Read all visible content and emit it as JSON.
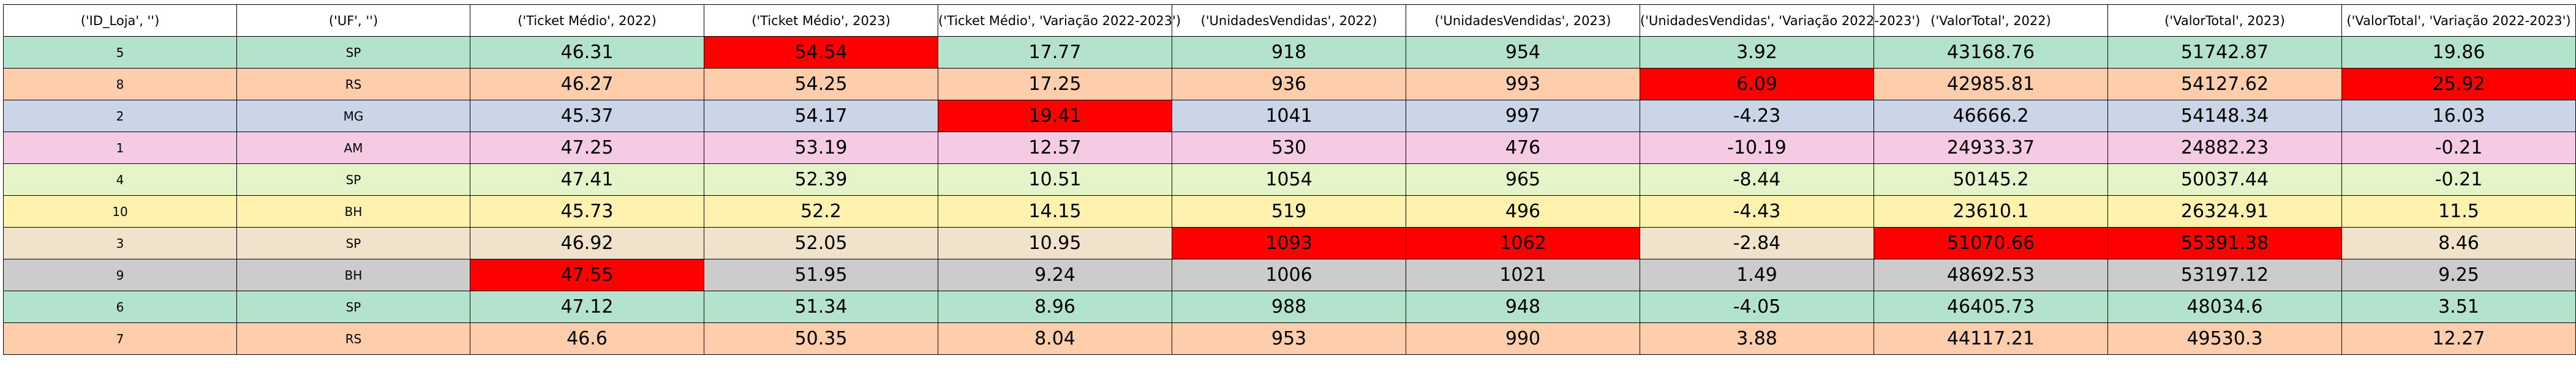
{
  "chart_data": {
    "type": "table",
    "columns": [
      "('ID_Loja', '')",
      "('UF', '')",
      "('Ticket Médio', 2022)",
      "('Ticket Médio', 2023)",
      "('Ticket Médio', 'Variação 2022-2023')",
      "('UnidadesVendidas', 2022)",
      "('UnidadesVendidas', 2023)",
      "('UnidadesVendidas', 'Variação 2022-2023')",
      "('ValorTotal', 2022)",
      "('ValorTotal', 2023)",
      "('ValorTotal', 'Variação 2022-2023')"
    ],
    "rows": [
      [
        "5",
        "SP",
        "46.31",
        "54.54",
        "17.77",
        "918",
        "954",
        "3.92",
        "43168.76",
        "51742.87",
        "19.86"
      ],
      [
        "8",
        "RS",
        "46.27",
        "54.25",
        "17.25",
        "936",
        "993",
        "6.09",
        "42985.81",
        "54127.62",
        "25.92"
      ],
      [
        "2",
        "MG",
        "45.37",
        "54.17",
        "19.41",
        "1041",
        "997",
        "-4.23",
        "46666.2",
        "54148.34",
        "16.03"
      ],
      [
        "1",
        "AM",
        "47.25",
        "53.19",
        "12.57",
        "530",
        "476",
        "-10.19",
        "24933.37",
        "24882.23",
        "-0.21"
      ],
      [
        "4",
        "SP",
        "47.41",
        "52.39",
        "10.51",
        "1054",
        "965",
        "-8.44",
        "50145.2",
        "50037.44",
        "-0.21"
      ],
      [
        "10",
        "BH",
        "45.73",
        "52.2",
        "14.15",
        "519",
        "496",
        "-4.43",
        "23610.1",
        "26324.91",
        "11.5"
      ],
      [
        "3",
        "SP",
        "46.92",
        "52.05",
        "10.95",
        "1093",
        "1062",
        "-2.84",
        "51070.66",
        "55391.38",
        "8.46"
      ],
      [
        "9",
        "BH",
        "47.55",
        "51.95",
        "9.24",
        "1006",
        "1021",
        "1.49",
        "48692.53",
        "53197.12",
        "9.25"
      ],
      [
        "6",
        "SP",
        "47.12",
        "51.34",
        "8.96",
        "988",
        "948",
        "-4.05",
        "46405.73",
        "48034.6",
        "3.51"
      ],
      [
        "7",
        "RS",
        "46.6",
        "50.35",
        "8.04",
        "953",
        "990",
        "3.88",
        "44117.21",
        "49530.3",
        "12.27"
      ]
    ],
    "row_colors": [
      "#b3e2cd",
      "#fdcdac",
      "#cbd5e8",
      "#f4cae4",
      "#e6f5c9",
      "#fff2ae",
      "#f1e2cc",
      "#cccccc",
      "#b3e2cd",
      "#fdcdac"
    ],
    "highlight_color": "#ff0000",
    "highlight_cells": [
      [
        0,
        3
      ],
      [
        1,
        7
      ],
      [
        1,
        10
      ],
      [
        2,
        4
      ],
      [
        6,
        5
      ],
      [
        6,
        6
      ],
      [
        6,
        8
      ],
      [
        6,
        9
      ],
      [
        7,
        2
      ]
    ]
  }
}
